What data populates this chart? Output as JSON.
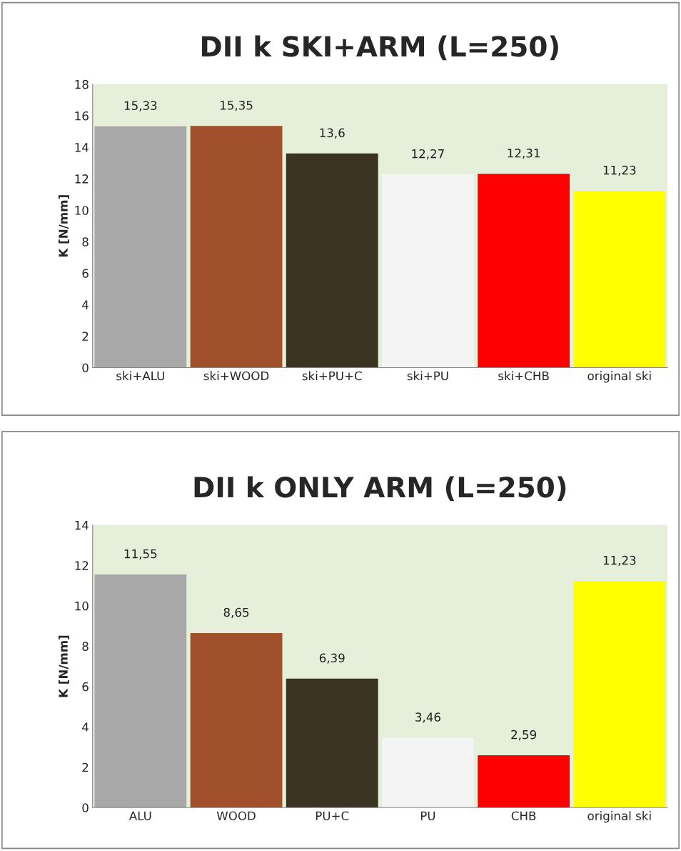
{
  "chart_data": [
    {
      "type": "bar",
      "title": "DII k SKI+ARM (L=250)",
      "ylabel": "K [N/mm]",
      "categories": [
        "ski+ALU",
        "ski+WOOD",
        "ski+PU+C",
        "ski+PU",
        "ski+CHB",
        "original ski"
      ],
      "values": [
        15.33,
        15.35,
        13.6,
        12.27,
        12.31,
        11.23
      ],
      "colors": [
        "#a8a8a8",
        "#a0502a",
        "#3a3322",
        "#f4f4f4",
        "#ff0000",
        "#ffff00"
      ],
      "value_labels": [
        "15,33",
        "15,35",
        "13,6",
        "12,27",
        "12,31",
        "11,23"
      ],
      "ylim": [
        0,
        18
      ],
      "yticks": [
        0,
        2,
        4,
        6,
        8,
        10,
        12,
        14,
        16,
        18
      ],
      "grid": false,
      "legend": false
    },
    {
      "type": "bar",
      "title": "DII k ONLY ARM (L=250)",
      "ylabel": "K [N/mm]",
      "categories": [
        "ALU",
        "WOOD",
        "PU+C",
        "PU",
        "CHB",
        "original ski"
      ],
      "values": [
        11.55,
        8.65,
        6.39,
        3.46,
        2.59,
        11.23
      ],
      "colors": [
        "#a8a8a8",
        "#a0502a",
        "#3a3322",
        "#f4f4f4",
        "#ff0000",
        "#ffff00"
      ],
      "value_labels": [
        "11,55",
        "8,65",
        "6,39",
        "3,46",
        "2,59",
        "11,23"
      ],
      "ylim": [
        0,
        14
      ],
      "yticks": [
        0,
        2,
        4,
        6,
        8,
        10,
        12,
        14
      ],
      "grid": false,
      "legend": false
    }
  ]
}
